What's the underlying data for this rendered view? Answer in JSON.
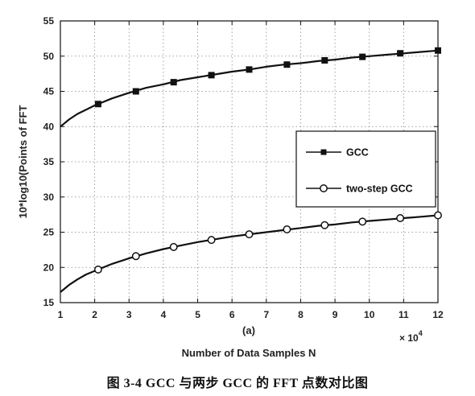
{
  "chart_data": {
    "type": "line",
    "xlabel": "Number of Data Samples N",
    "ylabel": "10*log10(Points of FFT",
    "subplot_label": "(a)",
    "x_multiplier": "× 10",
    "x_multiplier_exp": "4",
    "xlim": [
      1,
      12
    ],
    "ylim": [
      15,
      55
    ],
    "xticks": [
      1,
      2,
      3,
      4,
      5,
      6,
      7,
      8,
      9,
      10,
      11,
      12
    ],
    "yticks": [
      15,
      20,
      25,
      30,
      35,
      40,
      45,
      50,
      55
    ],
    "grid": true,
    "legend_position": "right",
    "series": [
      {
        "name": "GCC",
        "marker": "square-filled",
        "color": "#111111",
        "curve_x": [
          1.0,
          1.1,
          1.25,
          1.5,
          1.75,
          2.0,
          2.5,
          3.0,
          3.5,
          4.0,
          4.5,
          5.0,
          5.5,
          6.0,
          6.5,
          7.0,
          7.5,
          8.0,
          8.5,
          9.0,
          9.5,
          10.0,
          10.5,
          11.0,
          11.5,
          12.0
        ],
        "curve_y": [
          40.0,
          40.4,
          41.0,
          41.8,
          42.4,
          43.0,
          44.0,
          44.8,
          45.5,
          46.0,
          46.6,
          47.0,
          47.4,
          47.8,
          48.1,
          48.5,
          48.8,
          49.0,
          49.3,
          49.5,
          49.8,
          50.0,
          50.2,
          50.4,
          50.6,
          50.8
        ],
        "marker_x": [
          2.1,
          3.2,
          4.3,
          5.4,
          6.5,
          7.6,
          8.7,
          9.8,
          10.9,
          12.0
        ],
        "marker_y": [
          43.2,
          45.0,
          46.3,
          47.3,
          48.1,
          48.8,
          49.4,
          49.9,
          50.4,
          50.8
        ]
      },
      {
        "name": "two-step GCC",
        "marker": "circle-open",
        "color": "#111111",
        "curve_x": [
          1.0,
          1.1,
          1.25,
          1.5,
          1.75,
          2.0,
          2.5,
          3.0,
          3.5,
          4.0,
          4.5,
          5.0,
          5.5,
          6.0,
          6.5,
          7.0,
          7.5,
          8.0,
          8.5,
          9.0,
          9.5,
          10.0,
          10.5,
          11.0,
          11.5,
          12.0
        ],
        "curve_y": [
          16.5,
          16.9,
          17.5,
          18.3,
          19.0,
          19.5,
          20.5,
          21.3,
          22.0,
          22.6,
          23.1,
          23.6,
          24.0,
          24.4,
          24.7,
          25.0,
          25.3,
          25.6,
          25.9,
          26.1,
          26.4,
          26.6,
          26.8,
          27.0,
          27.2,
          27.4
        ],
        "marker_x": [
          2.1,
          3.2,
          4.3,
          5.4,
          6.5,
          7.6,
          8.7,
          9.8,
          10.9,
          12.0
        ],
        "marker_y": [
          19.7,
          21.6,
          22.9,
          23.9,
          24.7,
          25.4,
          26.0,
          26.5,
          27.0,
          27.4
        ]
      }
    ]
  },
  "caption": "图 3-4 GCC 与两步 GCC 的 FFT 点数对比图"
}
